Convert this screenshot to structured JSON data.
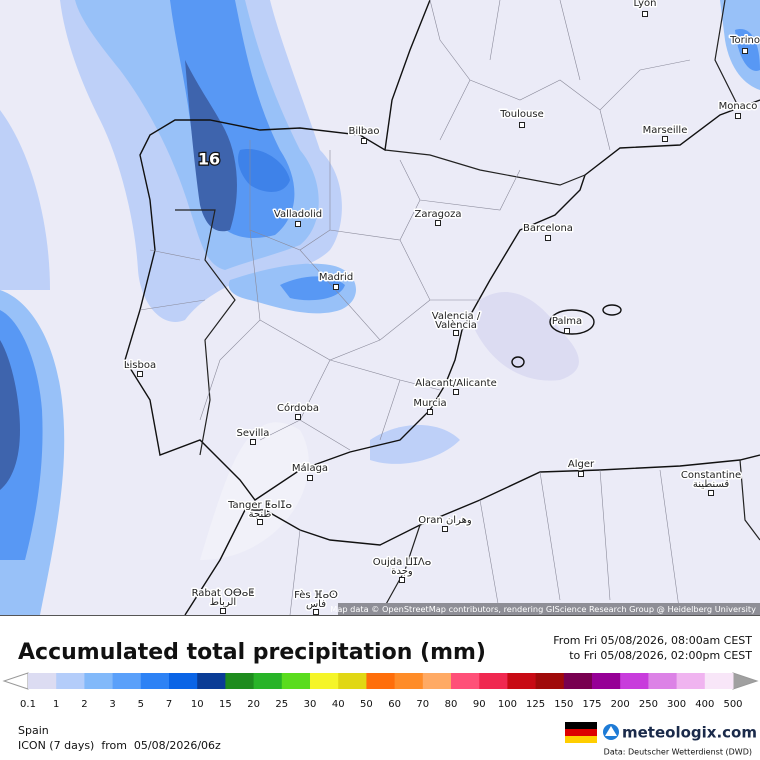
{
  "map": {
    "max_value": 16,
    "attribution": "Map data © OpenStreetMap contributors, rendering GIScience Research Group @ Heidelberg University",
    "cities": [
      {
        "lines": [
          "Lyon"
        ]
      },
      {
        "lines": [
          "Torino"
        ]
      },
      {
        "lines": [
          "Monaco"
        ]
      },
      {
        "lines": [
          "Toulouse"
        ]
      },
      {
        "lines": [
          "Marseille"
        ]
      },
      {
        "lines": [
          "Bilbao"
        ]
      },
      {
        "lines": [
          "Valladolid"
        ]
      },
      {
        "lines": [
          "Zaragoza"
        ]
      },
      {
        "lines": [
          "Barcelona"
        ]
      },
      {
        "lines": [
          "Madrid"
        ]
      },
      {
        "lines": [
          "Valencia /",
          "València"
        ]
      },
      {
        "lines": [
          "Palma"
        ]
      },
      {
        "lines": [
          "Lisboa"
        ]
      },
      {
        "lines": [
          "Alacant/Alicante"
        ]
      },
      {
        "lines": [
          "Murcia"
        ]
      },
      {
        "lines": [
          "Córdoba"
        ]
      },
      {
        "lines": [
          "Sevilla"
        ]
      },
      {
        "lines": [
          "Málaga"
        ]
      },
      {
        "lines": [
          "Alger"
        ]
      },
      {
        "lines": [
          "Constantine",
          "قسنطينة"
        ]
      },
      {
        "lines": [
          "Tanger ⵟⴰⵏⵊⴰ",
          "طنجة"
        ]
      },
      {
        "lines": [
          "Oran وهران"
        ]
      },
      {
        "lines": [
          "Oujda ⵡⵊⴷⴰ",
          "وجدة"
        ]
      },
      {
        "lines": [
          "Rabat ⵔⴱⴰⵟ",
          "الرباط"
        ]
      },
      {
        "lines": [
          "Fès ⴼⴰⵙ",
          "فاس"
        ]
      }
    ]
  },
  "legend": {
    "title": "Accumulated total precipitation (mm)",
    "period": [
      "From Fri 05/08/2026, 08:00am CEST",
      "to Fri 05/08/2026, 02:00pm CEST"
    ],
    "ticks": [
      0.1,
      1,
      2,
      3,
      5,
      7,
      10,
      15,
      20,
      25,
      30,
      40,
      50,
      60,
      70,
      80,
      90,
      100,
      125,
      150,
      175,
      200,
      250,
      300,
      400,
      500
    ],
    "colors": [
      "#dcdcf2",
      "#b4cdfa",
      "#82b9fa",
      "#5aa0fa",
      "#2d82f5",
      "#0a64e6",
      "#0a3c96",
      "#1e8c1e",
      "#28b428",
      "#5adc1e",
      "#f5f528",
      "#e1d714",
      "#ff6e0a",
      "#ff8c28",
      "#ffaa64",
      "#ff5078",
      "#f02850",
      "#c80a14",
      "#a00a0a",
      "#780050",
      "#960096",
      "#c83cdc",
      "#dc82e6",
      "#f0b4f0",
      "#f8e6f8"
    ],
    "under_color": "#ffffff",
    "over_color": "#a0a0a0",
    "region": "Spain",
    "model": "ICON (7 days)  from  05/08/2026/06z",
    "logo": "meteologix.com",
    "credit": "Data: Deutscher Wetterdienst (DWD)"
  }
}
